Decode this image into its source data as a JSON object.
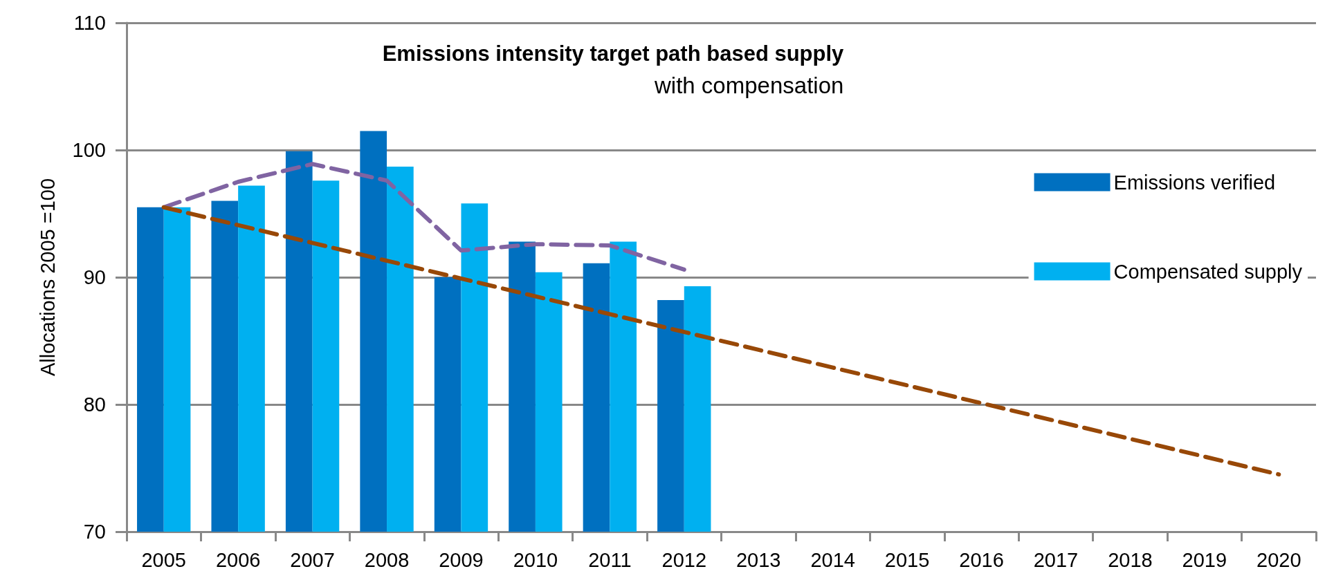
{
  "chart_data": {
    "type": "bar",
    "title": "Emissions intensity target path based supply",
    "subtitle": "with compensation",
    "ylabel": "Allocations 2005 =100",
    "categories": [
      "2005",
      "2006",
      "2007",
      "2008",
      "2009",
      "2010",
      "2011",
      "2012",
      "2013",
      "2014",
      "2015",
      "2016",
      "2017",
      "2018",
      "2019",
      "2020"
    ],
    "series": [
      {
        "name": "Emissions verified",
        "color": "#0070c0",
        "values": [
          95.5,
          96.0,
          99.9,
          101.5,
          90.0,
          92.8,
          91.1,
          88.2,
          null,
          null,
          null,
          null,
          null,
          null,
          null,
          null
        ]
      },
      {
        "name": "Compensated supply",
        "color": "#00b0f0",
        "values": [
          95.5,
          97.2,
          97.6,
          98.7,
          95.8,
          90.4,
          92.8,
          89.3,
          null,
          null,
          null,
          null,
          null,
          null,
          null,
          null
        ]
      },
      {
        "type": "line",
        "color": "#8064a2",
        "line_style": "dashed",
        "values": [
          95.5,
          97.5,
          98.9,
          97.6,
          92.1,
          92.6,
          92.5,
          90.6,
          null,
          null,
          null,
          null,
          null,
          null,
          null,
          null
        ]
      },
      {
        "type": "line",
        "color": "#984807",
        "line_style": "dashed",
        "values": [
          95.5,
          94.1,
          92.7,
          91.3,
          89.9,
          88.5,
          87.1,
          85.7,
          84.3,
          82.9,
          81.5,
          80.1,
          78.7,
          77.3,
          75.9,
          74.5
        ]
      }
    ],
    "ylim": [
      70,
      110
    ],
    "yticks": [
      70,
      80,
      90,
      100,
      110
    ],
    "grid": "y",
    "legend": "top right",
    "marker": "none"
  }
}
